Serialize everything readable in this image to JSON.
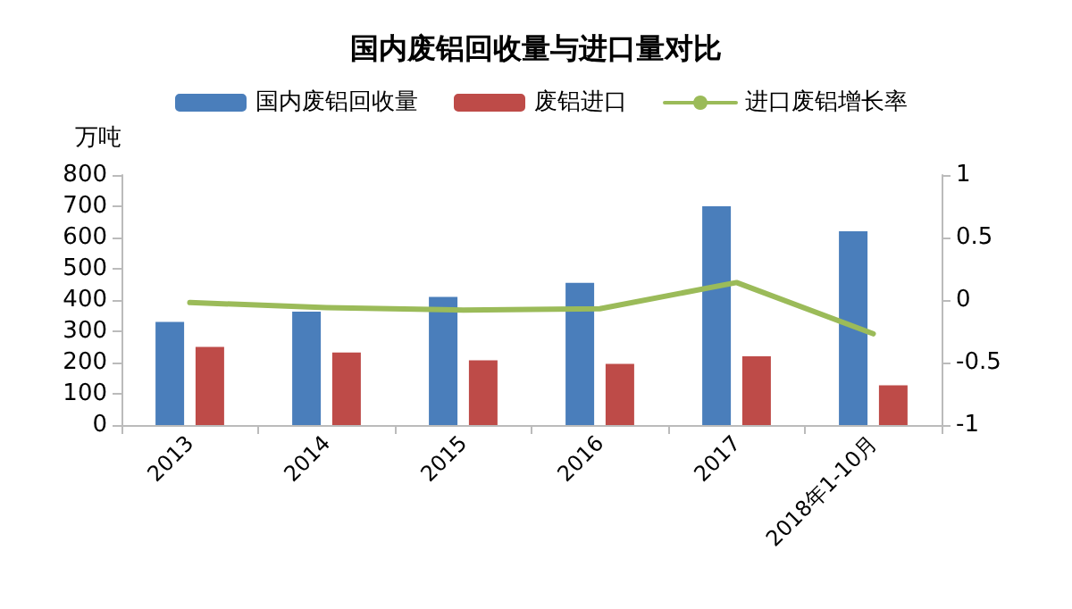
{
  "chart_data": {
    "type": "bar",
    "title": "国内废铝回收量与进口量对比",
    "ylabel": "万吨",
    "categories": [
      "2013",
      "2014",
      "2015",
      "2016",
      "2017",
      "2018年1-10月"
    ],
    "series": [
      {
        "name": "国内废铝回收量",
        "color": "#4a7ebb",
        "values": [
          330,
          363,
          410,
          455,
          700,
          620
        ]
      },
      {
        "name": "废铝进口",
        "color": "#be4b48",
        "values": [
          250,
          232,
          207,
          196,
          220,
          127
        ]
      },
      {
        "name": "进口废铝增长率",
        "type": "line",
        "axis": "y2",
        "color": "#9bbb59",
        "values": [
          -0.02,
          -0.06,
          -0.08,
          -0.07,
          0.14,
          -0.27
        ]
      }
    ],
    "ylim": [
      0,
      800
    ],
    "yticks": [
      0,
      100,
      200,
      300,
      400,
      500,
      600,
      700,
      800
    ],
    "y2lim": [
      -1,
      1
    ],
    "y2ticks": [
      -1,
      -0.5,
      0,
      0.5,
      1
    ],
    "grid": false,
    "legend": "top",
    "marker": "none"
  }
}
